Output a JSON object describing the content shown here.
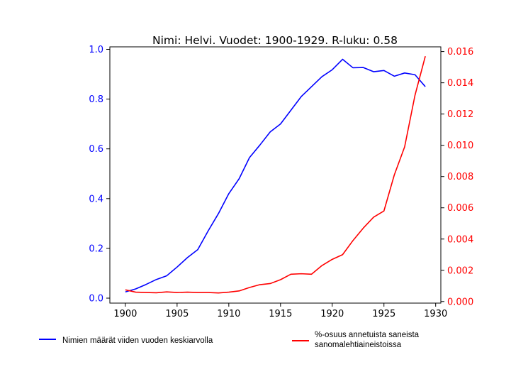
{
  "chart_data": {
    "type": "line",
    "title": "Nimi: Helvi. Vuodet: 1900-1929. R-luku: 0.58",
    "xlabel": "",
    "ylabel": "",
    "x": [
      1900,
      1901,
      1902,
      1903,
      1904,
      1905,
      1906,
      1907,
      1908,
      1909,
      1910,
      1911,
      1912,
      1913,
      1914,
      1915,
      1916,
      1917,
      1918,
      1919,
      1920,
      1921,
      1922,
      1923,
      1924,
      1925,
      1926,
      1927,
      1928,
      1929
    ],
    "xlim": [
      1898.5,
      1930.5
    ],
    "xticks": [
      1900,
      1905,
      1910,
      1915,
      1920,
      1925,
      1930
    ],
    "grid": false,
    "series": [
      {
        "name": "Nimien määrät viiden vuoden keskiarvolla",
        "axis": "left",
        "color": "#0000ff",
        "values": [
          0.025,
          0.037,
          0.055,
          0.075,
          0.09,
          0.125,
          0.163,
          0.195,
          0.27,
          0.34,
          0.42,
          0.48,
          0.565,
          0.615,
          0.668,
          0.7,
          0.755,
          0.81,
          0.85,
          0.89,
          0.918,
          0.96,
          0.926,
          0.927,
          0.91,
          0.915,
          0.892,
          0.905,
          0.898,
          0.85
        ]
      },
      {
        "name": "%-osuus annetuista saneista\n sanomalehtiaineistoissa",
        "axis": "right",
        "color": "#ff0000",
        "values": [
          0.00075,
          0.0006,
          0.00058,
          0.00056,
          0.00062,
          0.00058,
          0.0006,
          0.00058,
          0.00058,
          0.00055,
          0.0006,
          0.00068,
          0.0009,
          0.00108,
          0.00115,
          0.0014,
          0.00175,
          0.00178,
          0.00175,
          0.0023,
          0.0027,
          0.003,
          0.0039,
          0.0047,
          0.0054,
          0.0058,
          0.0081,
          0.0099,
          0.0132,
          0.0157
        ]
      }
    ],
    "y_left": {
      "lim": [
        -0.02,
        1.01
      ],
      "ticks": [
        0.0,
        0.2,
        0.4,
        0.6,
        0.8,
        1.0
      ],
      "tick_labels": [
        "0.0",
        "0.2",
        "0.4",
        "0.6",
        "0.8",
        "1.0"
      ],
      "color": "#0000ff"
    },
    "y_right": {
      "lim": [
        -0.0001,
        0.0163
      ],
      "ticks": [
        0.0,
        0.002,
        0.004,
        0.006,
        0.008,
        0.01,
        0.012,
        0.014,
        0.016
      ],
      "tick_labels": [
        "0.000",
        "0.002",
        "0.004",
        "0.006",
        "0.008",
        "0.010",
        "0.012",
        "0.014",
        "0.016"
      ],
      "color": "#ff0000"
    },
    "legend_placement": "below"
  }
}
